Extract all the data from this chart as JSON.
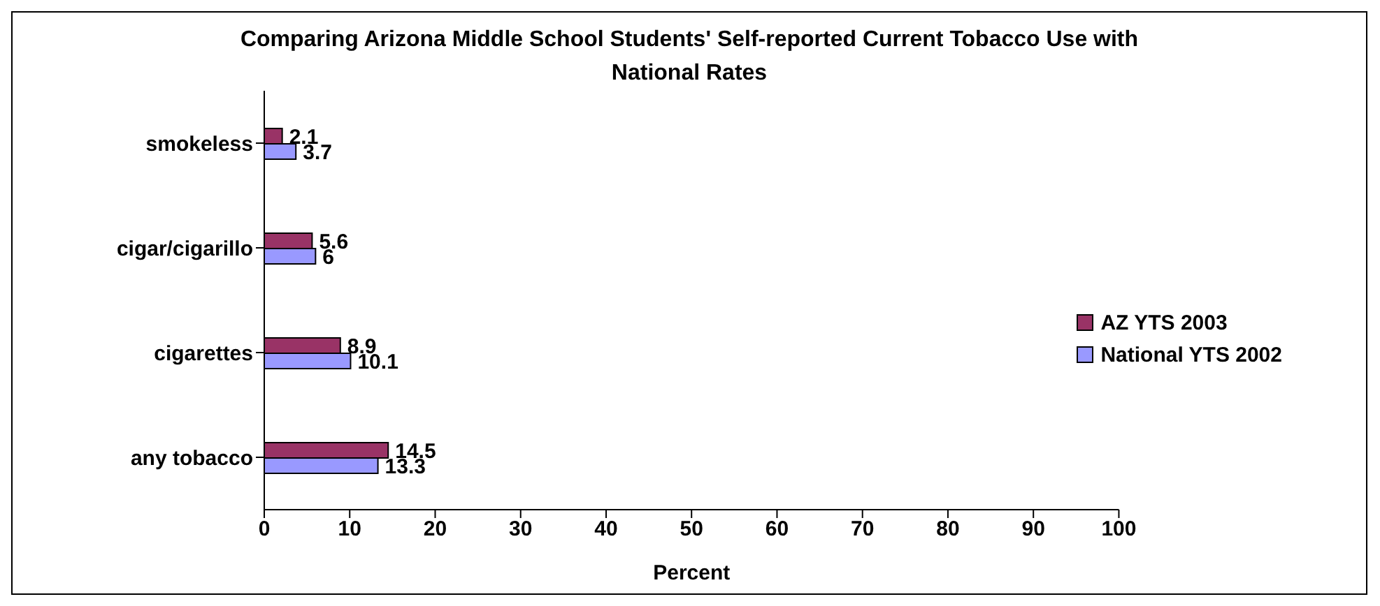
{
  "chart_data": {
    "type": "bar",
    "orientation": "horizontal",
    "title": "Comparing Arizona Middle School Students' Self-reported Current Tobacco Use with National Rates",
    "xlabel": "Percent",
    "categories": [
      "smokeless",
      "cigar/cigarillo",
      "cigarettes",
      "any tobacco"
    ],
    "series": [
      {
        "name": "AZ YTS 2003",
        "color": "#993366",
        "values": [
          2.1,
          5.6,
          8.9,
          14.5
        ]
      },
      {
        "name": "National YTS 2002",
        "color": "#9999ff",
        "values": [
          3.7,
          6,
          10.1,
          13.3
        ]
      }
    ],
    "xlim": [
      0,
      100
    ],
    "xticks": [
      0,
      10,
      20,
      30,
      40,
      50,
      60,
      70,
      80,
      90,
      100
    ],
    "data_labels": true,
    "legend": "right",
    "grid": false
  }
}
